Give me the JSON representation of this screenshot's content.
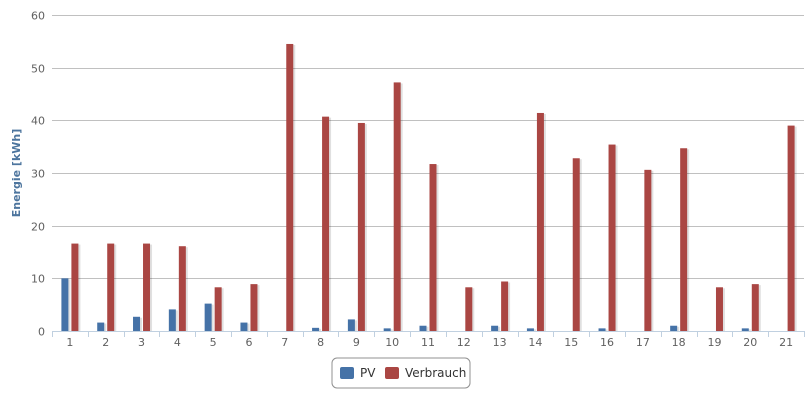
{
  "chart_data": {
    "type": "bar",
    "categories": [
      "1",
      "2",
      "3",
      "4",
      "5",
      "6",
      "7",
      "8",
      "9",
      "10",
      "11",
      "12",
      "13",
      "14",
      "15",
      "16",
      "17",
      "18",
      "19",
      "20",
      "21"
    ],
    "series": [
      {
        "name": "PV",
        "color": "#4572a7",
        "values": [
          10.0,
          1.6,
          2.7,
          4.1,
          5.2,
          1.6,
          0,
          0.6,
          2.2,
          0.5,
          1.0,
          0,
          1.0,
          0.5,
          0,
          0.5,
          0,
          1.0,
          0,
          0.5,
          0
        ]
      },
      {
        "name": "Verbrauch",
        "color": "#aa4643",
        "values": [
          16.6,
          16.6,
          16.6,
          16.1,
          8.3,
          8.9,
          54.5,
          40.7,
          39.5,
          47.2,
          31.7,
          8.3,
          9.4,
          41.4,
          32.8,
          35.4,
          30.6,
          34.7,
          8.3,
          8.9,
          39.0
        ]
      }
    ],
    "title": "",
    "xlabel": "",
    "ylabel": "Energie [kWh]",
    "ylim": [
      0,
      60
    ],
    "yticks": [
      0,
      10,
      20,
      30,
      40,
      50,
      60
    ],
    "grid": true,
    "legend": "bottom-center"
  }
}
